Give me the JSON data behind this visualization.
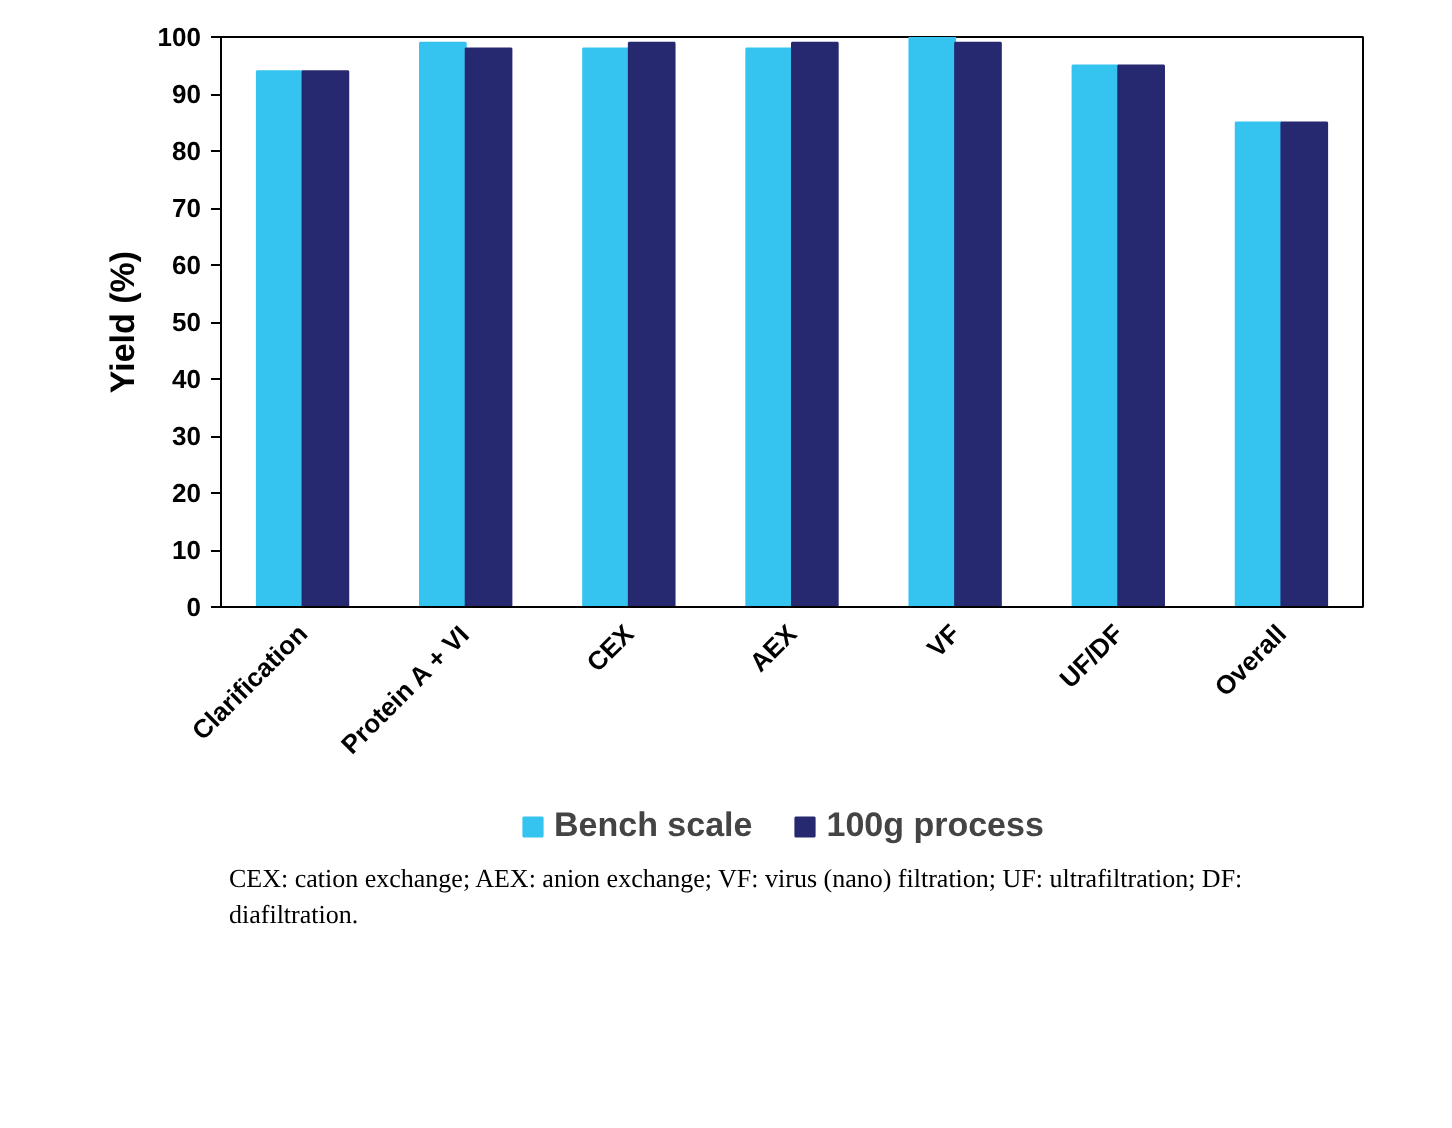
{
  "chart_data": {
    "type": "bar",
    "ylabel": "Yield (%)",
    "categories": [
      "Clarification",
      "Protein A + VI",
      "CEX",
      "AEX",
      "VF",
      "UF/DF",
      "Overall"
    ],
    "series": [
      {
        "name": "Bench scale",
        "color": "#35c3f0",
        "values": [
          94,
          99,
          98,
          98,
          100,
          95,
          85
        ]
      },
      {
        "name": "100g process",
        "color": "#262870",
        "values": [
          94,
          98,
          99,
          99,
          99,
          95,
          85
        ]
      }
    ],
    "ylim": [
      0,
      100
    ],
    "yticks": [
      0,
      10,
      20,
      30,
      40,
      50,
      60,
      70,
      80,
      90,
      100
    ],
    "grid": false,
    "legend": "bottom",
    "annotations": [
      "CEX: cation exchange; AEX: anion exchange; VF: virus (nano) filtration; UF: ultrafiltration; DF: diafiltration."
    ]
  }
}
